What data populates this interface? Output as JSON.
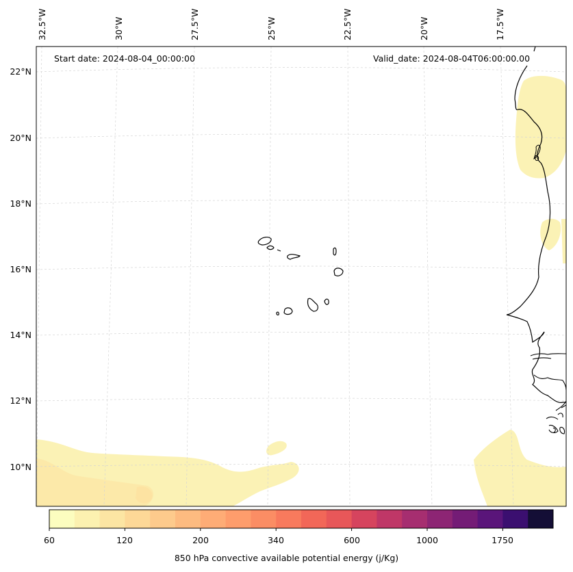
{
  "map": {
    "start_date": "Start date: 2024-08-04_00:00:00",
    "valid_date": "Valid_date: 2024-08-04T06:00:00.00",
    "colors": {
      "coastline": "#000000",
      "gridline": "#cccccc",
      "low_cape": "#fbf3b6",
      "mid_cape": "#fce8a8"
    },
    "lon_labels": [
      "32.5°W",
      "30°W",
      "27.5°W",
      "25°W",
      "22.5°W",
      "20°W",
      "17.5°W"
    ],
    "lat_labels": [
      "22°N",
      "20°N",
      "18°N",
      "16°N",
      "14°N",
      "12°N",
      "10°N"
    ]
  },
  "colorbar": {
    "label": "850 hPa convective available potential energy (j/Kg)",
    "ticks": [
      "60",
      "120",
      "200",
      "340",
      "600",
      "1000",
      "1750"
    ],
    "colors": [
      "#fcfdbf",
      "#fcf1b0",
      "#fce5a3",
      "#fdd897",
      "#fdca8c",
      "#fdbb80",
      "#feac76",
      "#fe9d6c",
      "#fb8d64",
      "#f87a5d",
      "#f26758",
      "#e85759",
      "#d6445e",
      "#bf3767",
      "#a62e70",
      "#8d2574",
      "#741c76",
      "#5a157a",
      "#3b0f70",
      "#140e36"
    ],
    "colormap": "magma_r"
  }
}
